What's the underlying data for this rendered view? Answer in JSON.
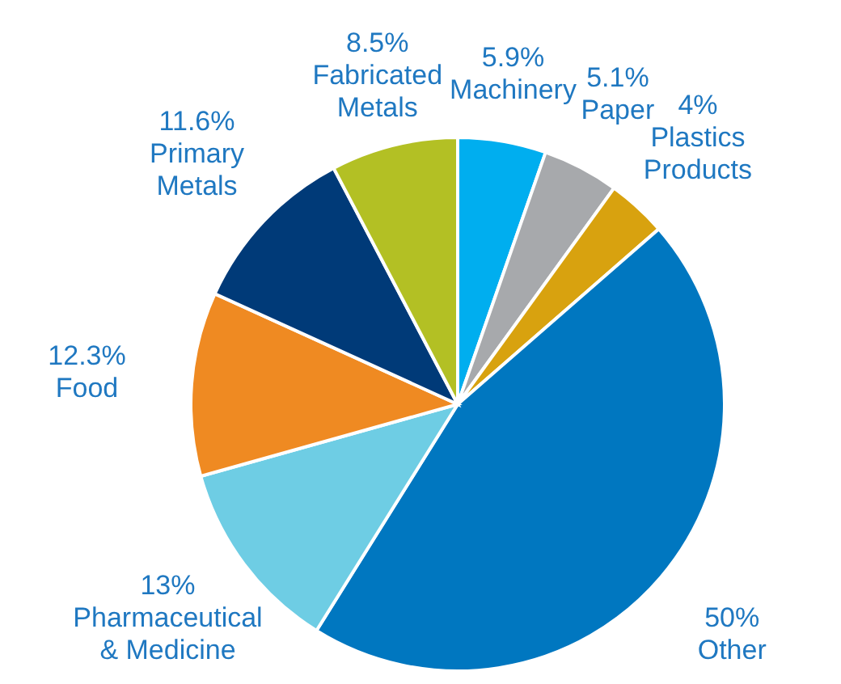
{
  "chart_data": {
    "type": "pie",
    "categories": [
      "Machinery",
      "Paper",
      "Plastics Products",
      "Other",
      "Pharmaceutical & Medicine",
      "Food",
      "Primary Metals",
      "Fabricated Metals"
    ],
    "values": [
      5.9,
      5.1,
      4,
      50,
      13,
      12.3,
      11.6,
      8.5
    ],
    "value_labels": [
      "5.9%",
      "5.1%",
      "4%",
      "50%",
      "13%",
      "12.3%",
      "11.6%",
      "8.5%"
    ],
    "colors": [
      "#00aeef",
      "#a7a9ac",
      "#d8a20f",
      "#0077c0",
      "#6ecde4",
      "#ef8a22",
      "#003a78",
      "#b3c024"
    ],
    "legend": false
  }
}
